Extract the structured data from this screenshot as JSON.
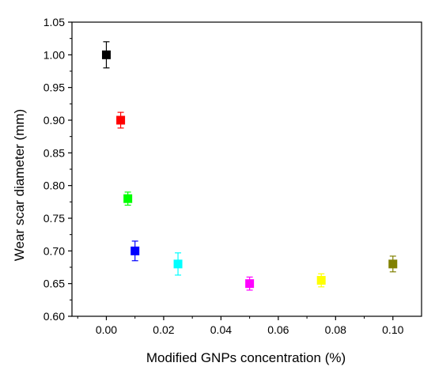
{
  "chart_data": {
    "type": "scatter",
    "xlabel": "Modified GNPs concentration (%)",
    "ylabel": "Wear scar diameter (mm)",
    "xlim": [
      -0.012,
      0.11
    ],
    "ylim": [
      0.6,
      1.05
    ],
    "x_ticks": [
      "0.00",
      "0.02",
      "0.04",
      "0.06",
      "0.08",
      "0.10"
    ],
    "y_ticks": [
      "0.60",
      "0.65",
      "0.70",
      "0.75",
      "0.80",
      "0.85",
      "0.90",
      "0.95",
      "1.00",
      "1.05"
    ],
    "grid": false,
    "legend": "none",
    "marker": "square",
    "error_bars": true,
    "points": [
      {
        "x": 0.0,
        "y": 1.0,
        "err": 0.02,
        "color": "#000000"
      },
      {
        "x": 0.005,
        "y": 0.9,
        "err": 0.012,
        "color": "#ff0000"
      },
      {
        "x": 0.0075,
        "y": 0.78,
        "err": 0.01,
        "color": "#00ff00"
      },
      {
        "x": 0.01,
        "y": 0.7,
        "err": 0.015,
        "color": "#0000ff"
      },
      {
        "x": 0.025,
        "y": 0.68,
        "err": 0.017,
        "color": "#00ffff"
      },
      {
        "x": 0.05,
        "y": 0.65,
        "err": 0.01,
        "color": "#ff00ff"
      },
      {
        "x": 0.075,
        "y": 0.655,
        "err": 0.01,
        "color": "#ffff00"
      },
      {
        "x": 0.1,
        "y": 0.68,
        "err": 0.012,
        "color": "#808000"
      }
    ]
  }
}
